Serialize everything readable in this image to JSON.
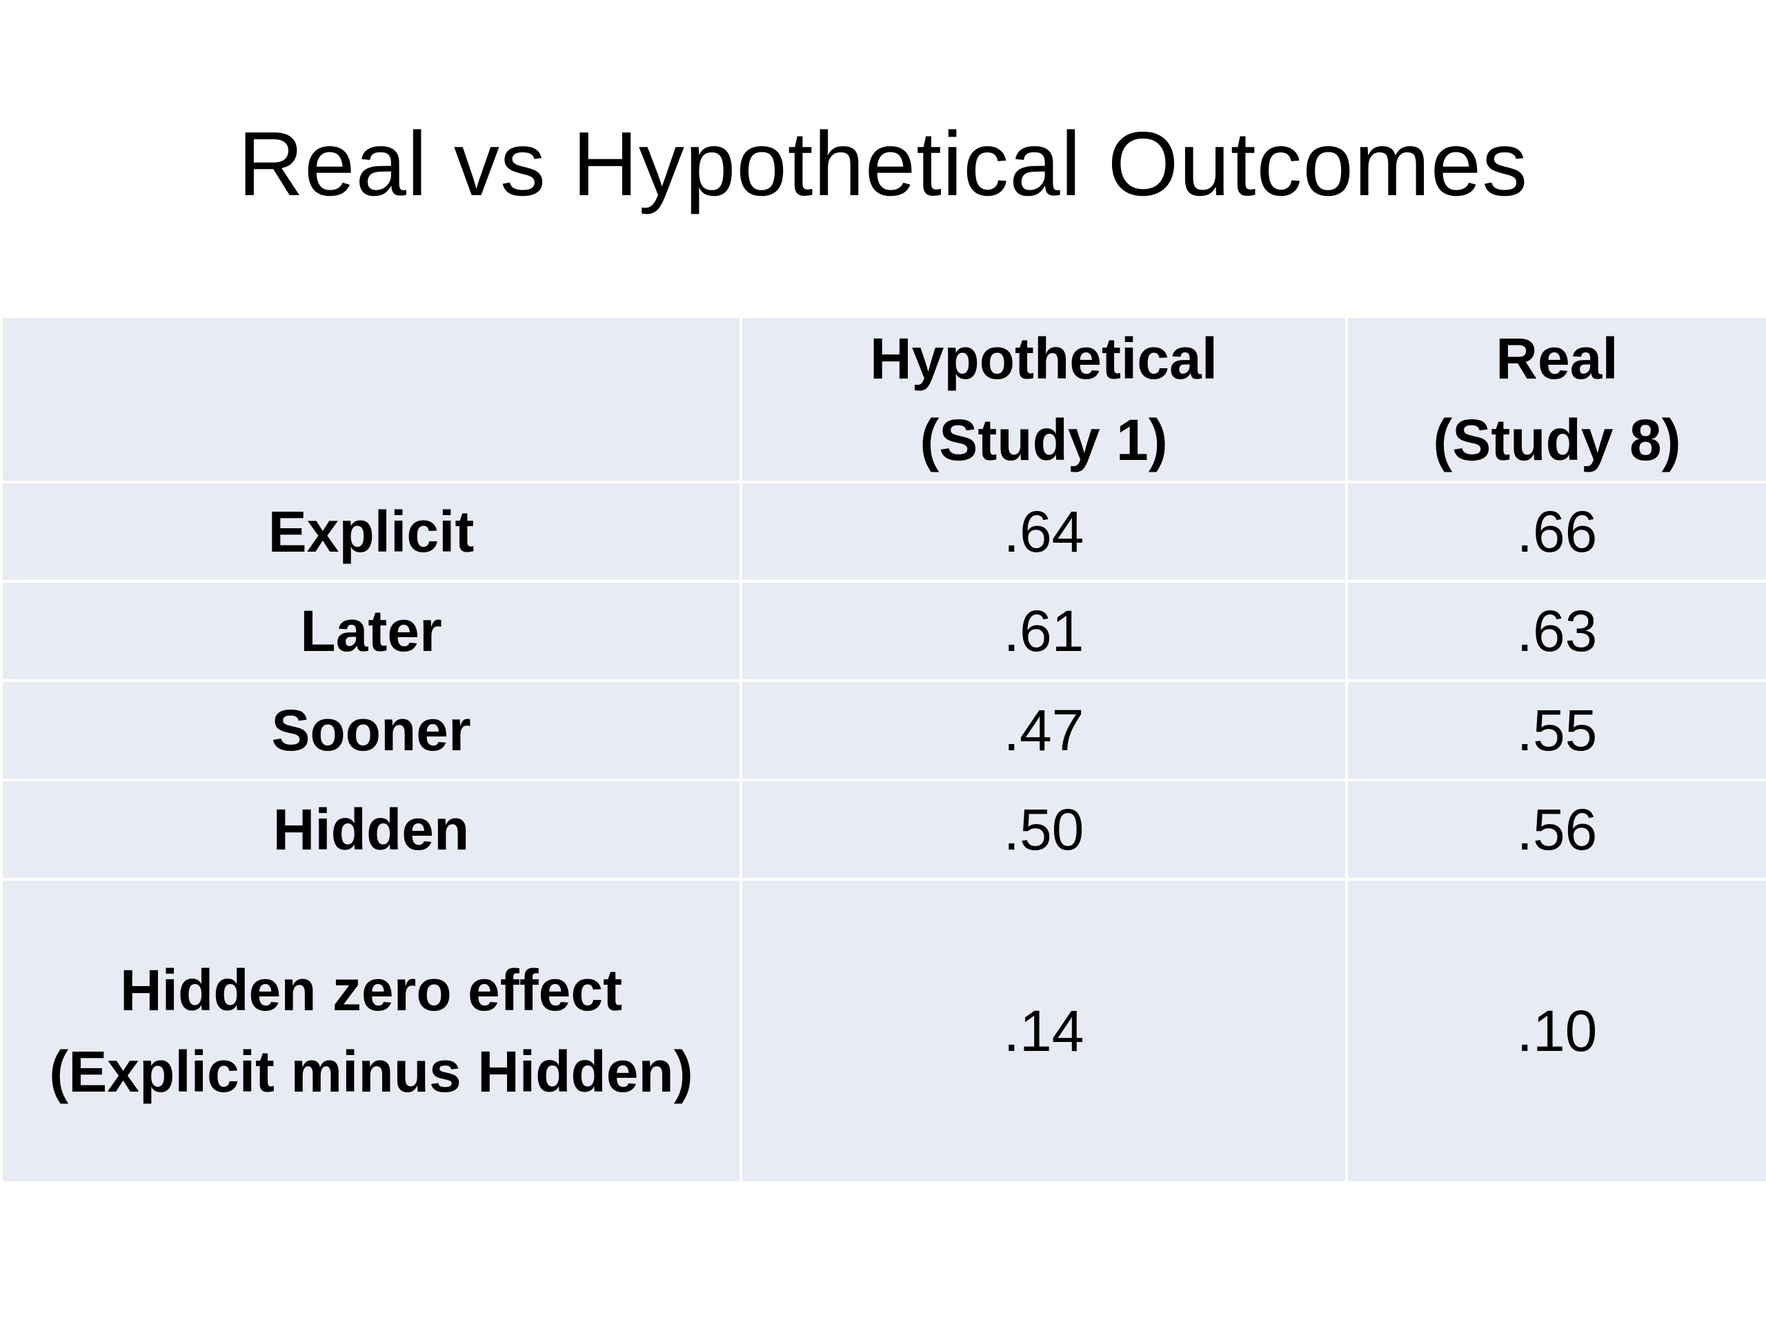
{
  "slide": {
    "title": "Real vs Hypothetical Outcomes"
  },
  "table": {
    "header": {
      "corner": "",
      "col1_line1": "Hypothetical",
      "col1_line2": "(Study 1)",
      "col2_line1": "Real",
      "col2_line2": "(Study 8)"
    },
    "rows": [
      {
        "label": "Explicit",
        "hypothetical": ".64",
        "real": ".66"
      },
      {
        "label": "Later",
        "hypothetical": ".61",
        "real": ".63"
      },
      {
        "label": "Sooner",
        "hypothetical": ".47",
        "real": ".55"
      },
      {
        "label": "Hidden",
        "hypothetical": ".50",
        "real": ".56"
      }
    ],
    "effect_row": {
      "label_line1": "Hidden zero effect",
      "label_line2": "(Explicit minus Hidden)",
      "hypothetical": ".14",
      "real": ".10"
    }
  },
  "colors": {
    "cell_background": "#e8ebf3",
    "grid_lines": "#ffffff",
    "text": "#000000"
  }
}
